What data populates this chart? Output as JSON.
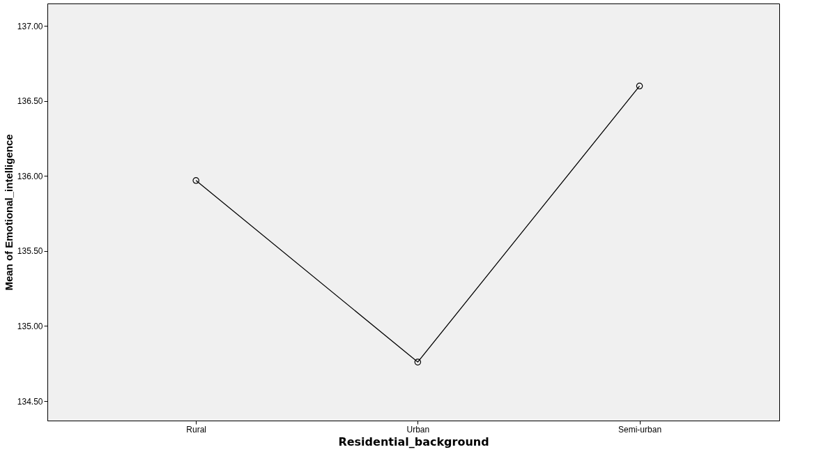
{
  "chart_data": {
    "type": "line",
    "xlabel": "Residential_background",
    "ylabel": "Mean of Emotional_intelligence",
    "categories": [
      "Rural",
      "Urban",
      "Semi-urban"
    ],
    "series": [
      {
        "color": "#000000",
        "values": [
          135.97,
          134.76,
          136.6
        ]
      }
    ],
    "ylim": [
      134.37,
      137.15
    ],
    "yticks": [
      {
        "value": 134.5,
        "label": "134.50"
      },
      {
        "value": 135,
        "label": "135.00"
      },
      {
        "value": 135.5,
        "label": "135.50"
      },
      {
        "value": 136,
        "label": "136.00"
      },
      {
        "value": 136.5,
        "label": "136.50"
      },
      {
        "value": 137,
        "label": "137.00"
      }
    ],
    "marker": "circle",
    "line_style": "solid",
    "grid": false,
    "legend": false
  }
}
